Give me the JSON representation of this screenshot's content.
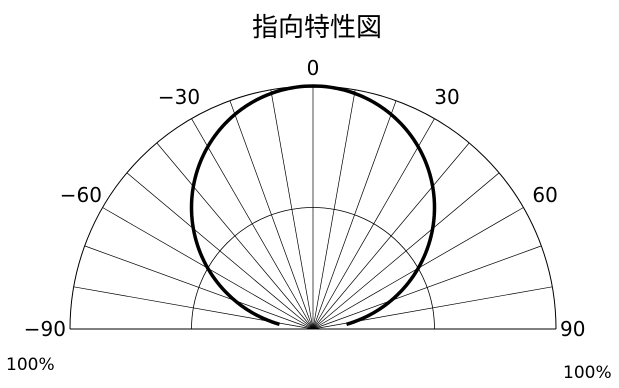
{
  "chart_data": {
    "type": "polar",
    "title": "指向特性図",
    "angle_ticks": [
      "-90",
      "-60",
      "-30",
      "0",
      "30",
      "60",
      "90"
    ],
    "radial_labels": {
      "left": "100%",
      "right": "100%"
    },
    "angle_range": [
      -90,
      90
    ],
    "radial_max_percent": 100,
    "grid": {
      "radial_line_step_deg": 10,
      "grid_circle_fractions": [
        0.5,
        1.0
      ]
    },
    "series": [
      {
        "pattern": "cosine",
        "angles_deg": [
          -90,
          -75,
          -60,
          -45,
          -30,
          -15,
          0,
          15,
          30,
          45,
          60,
          75,
          90
        ],
        "relative_percent": [
          0,
          26,
          50,
          71,
          87,
          97,
          100,
          97,
          87,
          71,
          50,
          26,
          0
        ]
      }
    ]
  }
}
